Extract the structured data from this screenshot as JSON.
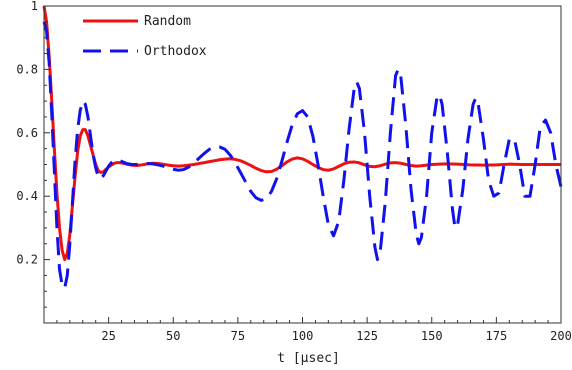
{
  "chart_data": {
    "type": "line",
    "title": "",
    "xlabel": "t [μsec]",
    "ylabel": "",
    "xlim": [
      0,
      200
    ],
    "ylim": [
      0,
      1
    ],
    "xticks": [
      25,
      50,
      75,
      100,
      125,
      150,
      175,
      200
    ],
    "xtick_labels": [
      "25",
      "50",
      "75",
      "100",
      "125",
      "150",
      "175",
      "200"
    ],
    "yticks": [
      0.2,
      0.4,
      0.6,
      0.8,
      1
    ],
    "ytick_labels": [
      "0.2",
      "0.4",
      "0.6",
      "0.8",
      "1"
    ],
    "grid": false,
    "legend_position": "top-left",
    "series": [
      {
        "name": "Random",
        "color": "#ee1111",
        "style": "solid",
        "points": [
          [
            0,
            1
          ],
          [
            1,
            0.95
          ],
          [
            2,
            0.84
          ],
          [
            3,
            0.7
          ],
          [
            4,
            0.55
          ],
          [
            5,
            0.41
          ],
          [
            6,
            0.3
          ],
          [
            7,
            0.23
          ],
          [
            8,
            0.2
          ],
          [
            9,
            0.22
          ],
          [
            10,
            0.28
          ],
          [
            11,
            0.37
          ],
          [
            12,
            0.46
          ],
          [
            13,
            0.54
          ],
          [
            14,
            0.59
          ],
          [
            15,
            0.61
          ],
          [
            16,
            0.61
          ],
          [
            17,
            0.59
          ],
          [
            18,
            0.56
          ],
          [
            19,
            0.53
          ],
          [
            20,
            0.5
          ],
          [
            21,
            0.48
          ],
          [
            22,
            0.475
          ],
          [
            23,
            0.477
          ],
          [
            24,
            0.485
          ],
          [
            25,
            0.492
          ],
          [
            26,
            0.498
          ],
          [
            27,
            0.503
          ],
          [
            28,
            0.506
          ],
          [
            29,
            0.506
          ],
          [
            30,
            0.505
          ],
          [
            32,
            0.501
          ],
          [
            34,
            0.498
          ],
          [
            36,
            0.497
          ],
          [
            38,
            0.499
          ],
          [
            40,
            0.502
          ],
          [
            42,
            0.504
          ],
          [
            44,
            0.503
          ],
          [
            46,
            0.501
          ],
          [
            48,
            0.498
          ],
          [
            50,
            0.496
          ],
          [
            52,
            0.495
          ],
          [
            54,
            0.496
          ],
          [
            56,
            0.498
          ],
          [
            58,
            0.5
          ],
          [
            60,
            0.503
          ],
          [
            62,
            0.506
          ],
          [
            64,
            0.509
          ],
          [
            66,
            0.512
          ],
          [
            68,
            0.515
          ],
          [
            70,
            0.517
          ],
          [
            72,
            0.518
          ],
          [
            74,
            0.516
          ],
          [
            76,
            0.512
          ],
          [
            78,
            0.505
          ],
          [
            80,
            0.497
          ],
          [
            82,
            0.488
          ],
          [
            84,
            0.481
          ],
          [
            86,
            0.477
          ],
          [
            88,
            0.478
          ],
          [
            90,
            0.485
          ],
          [
            92,
            0.496
          ],
          [
            94,
            0.508
          ],
          [
            96,
            0.517
          ],
          [
            98,
            0.521
          ],
          [
            100,
            0.518
          ],
          [
            102,
            0.51
          ],
          [
            104,
            0.5
          ],
          [
            106,
            0.491
          ],
          [
            108,
            0.484
          ],
          [
            110,
            0.482
          ],
          [
            112,
            0.486
          ],
          [
            114,
            0.494
          ],
          [
            116,
            0.502
          ],
          [
            118,
            0.507
          ],
          [
            120,
            0.508
          ],
          [
            122,
            0.505
          ],
          [
            124,
            0.499
          ],
          [
            126,
            0.494
          ],
          [
            128,
            0.493
          ],
          [
            130,
            0.496
          ],
          [
            132,
            0.501
          ],
          [
            134,
            0.505
          ],
          [
            136,
            0.506
          ],
          [
            138,
            0.504
          ],
          [
            140,
            0.5
          ],
          [
            142,
            0.497
          ],
          [
            144,
            0.495
          ],
          [
            146,
            0.496
          ],
          [
            148,
            0.498
          ],
          [
            150,
            0.5
          ],
          [
            155,
            0.502
          ],
          [
            160,
            0.501
          ],
          [
            165,
            0.499
          ],
          [
            170,
            0.498
          ],
          [
            175,
            0.499
          ],
          [
            180,
            0.501
          ],
          [
            185,
            0.5
          ],
          [
            190,
            0.5
          ],
          [
            195,
            0.5
          ],
          [
            200,
            0.5
          ]
        ]
      },
      {
        "name": "Orthodox",
        "color": "#1111ee",
        "style": "dashed",
        "points": [
          [
            0,
            0.95
          ],
          [
            1,
            0.92
          ],
          [
            2,
            0.82
          ],
          [
            3,
            0.66
          ],
          [
            4,
            0.48
          ],
          [
            5,
            0.3
          ],
          [
            6,
            0.17
          ],
          [
            7,
            0.12
          ],
          [
            8,
            0.11
          ],
          [
            9,
            0.15
          ],
          [
            10,
            0.25
          ],
          [
            11,
            0.38
          ],
          [
            12,
            0.51
          ],
          [
            13,
            0.61
          ],
          [
            14,
            0.67
          ],
          [
            15,
            0.7
          ],
          [
            16,
            0.69
          ],
          [
            17,
            0.65
          ],
          [
            18,
            0.59
          ],
          [
            19,
            0.53
          ],
          [
            20,
            0.49
          ],
          [
            21,
            0.46
          ],
          [
            22,
            0.455
          ],
          [
            23,
            0.465
          ],
          [
            24,
            0.48
          ],
          [
            25,
            0.495
          ],
          [
            26,
            0.505
          ],
          [
            27,
            0.512
          ],
          [
            28,
            0.515
          ],
          [
            29,
            0.514
          ],
          [
            30,
            0.51
          ],
          [
            32,
            0.503
          ],
          [
            34,
            0.5
          ],
          [
            36,
            0.5
          ],
          [
            38,
            0.502
          ],
          [
            40,
            0.503
          ],
          [
            42,
            0.502
          ],
          [
            44,
            0.499
          ],
          [
            46,
            0.495
          ],
          [
            48,
            0.49
          ],
          [
            50,
            0.485
          ],
          [
            52,
            0.482
          ],
          [
            54,
            0.484
          ],
          [
            56,
            0.492
          ],
          [
            58,
            0.505
          ],
          [
            60,
            0.52
          ],
          [
            62,
            0.535
          ],
          [
            64,
            0.548
          ],
          [
            66,
            0.555
          ],
          [
            68,
            0.555
          ],
          [
            70,
            0.548
          ],
          [
            72,
            0.53
          ],
          [
            74,
            0.505
          ],
          [
            76,
            0.475
          ],
          [
            78,
            0.445
          ],
          [
            80,
            0.415
          ],
          [
            82,
            0.395
          ],
          [
            84,
            0.387
          ],
          [
            86,
            0.392
          ],
          [
            88,
            0.415
          ],
          [
            90,
            0.455
          ],
          [
            92,
            0.51
          ],
          [
            94,
            0.57
          ],
          [
            96,
            0.625
          ],
          [
            98,
            0.66
          ],
          [
            100,
            0.67
          ],
          [
            102,
            0.65
          ],
          [
            104,
            0.59
          ],
          [
            106,
            0.5
          ],
          [
            108,
            0.4
          ],
          [
            110,
            0.31
          ],
          [
            112,
            0.275
          ],
          [
            114,
            0.32
          ],
          [
            116,
            0.45
          ],
          [
            118,
            0.61
          ],
          [
            120,
            0.74
          ],
          [
            121,
            0.76
          ],
          [
            122,
            0.74
          ],
          [
            124,
            0.6
          ],
          [
            126,
            0.4
          ],
          [
            128,
            0.24
          ],
          [
            129,
            0.2
          ],
          [
            130,
            0.22
          ],
          [
            132,
            0.38
          ],
          [
            134,
            0.6
          ],
          [
            136,
            0.78
          ],
          [
            137,
            0.8
          ],
          [
            138,
            0.78
          ],
          [
            140,
            0.62
          ],
          [
            142,
            0.42
          ],
          [
            144,
            0.28
          ],
          [
            145,
            0.25
          ],
          [
            146,
            0.27
          ],
          [
            148,
            0.4
          ],
          [
            150,
            0.6
          ],
          [
            152,
            0.71
          ],
          [
            153,
            0.72
          ],
          [
            154,
            0.69
          ],
          [
            156,
            0.54
          ],
          [
            158,
            0.36
          ],
          [
            159,
            0.3
          ],
          [
            160,
            0.31
          ],
          [
            162,
            0.42
          ],
          [
            164,
            0.58
          ],
          [
            166,
            0.69
          ],
          [
            167,
            0.71
          ],
          [
            168,
            0.69
          ],
          [
            170,
            0.58
          ],
          [
            172,
            0.45
          ],
          [
            174,
            0.4
          ],
          [
            176,
            0.41
          ],
          [
            178,
            0.5
          ],
          [
            180,
            0.58
          ],
          [
            182,
            0.58
          ],
          [
            184,
            0.5
          ],
          [
            186,
            0.4
          ],
          [
            188,
            0.4
          ],
          [
            190,
            0.5
          ],
          [
            192,
            0.62
          ],
          [
            194,
            0.64
          ],
          [
            196,
            0.6
          ],
          [
            198,
            0.5
          ],
          [
            200,
            0.43
          ]
        ]
      }
    ]
  }
}
